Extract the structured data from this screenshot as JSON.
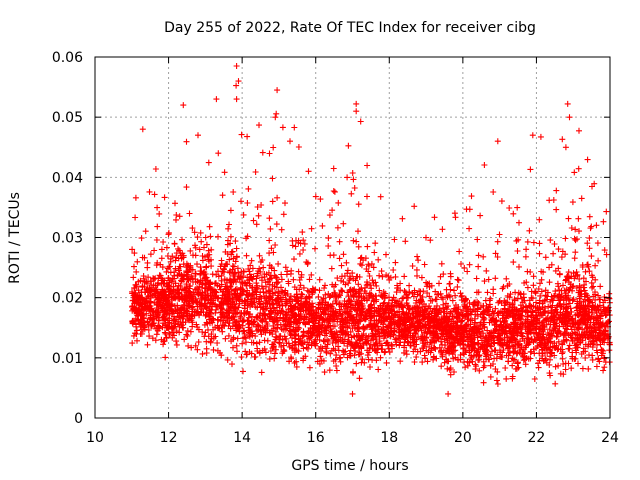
{
  "chart_data": {
    "type": "scatter",
    "title": "Day 255 of 2022, Rate Of TEC Index for receiver cibg",
    "xlabel": "GPS time / hours",
    "ylabel": "ROTI / TECUs",
    "xlim": [
      10,
      24
    ],
    "ylim": [
      0,
      0.06
    ],
    "x_ticks": [
      10,
      12,
      14,
      16,
      18,
      20,
      22,
      24
    ],
    "x_tick_labels": [
      "10",
      "12",
      "14",
      "16",
      "18",
      "20",
      "22",
      "24"
    ],
    "y_ticks": [
      0,
      0.01,
      0.02,
      0.03,
      0.04,
      0.05,
      0.06
    ],
    "y_tick_labels": [
      "0",
      "0.01",
      "0.02",
      "0.03",
      "0.04",
      "0.05",
      "0.06"
    ],
    "grid": true,
    "marker": "+",
    "color": "#ff0000",
    "series": [
      {
        "name": "ROTI",
        "x_range": [
          11.0,
          24.0
        ],
        "density_trend": [
          {
            "x": 11.0,
            "median": 0.018,
            "max": 0.036,
            "min": 0.007
          },
          {
            "x": 12.0,
            "median": 0.019,
            "max": 0.047,
            "min": 0.007
          },
          {
            "x": 13.0,
            "median": 0.02,
            "max": 0.05,
            "min": 0.006
          },
          {
            "x": 14.0,
            "median": 0.019,
            "max": 0.058,
            "min": 0.007
          },
          {
            "x": 15.0,
            "median": 0.017,
            "max": 0.054,
            "min": 0.007
          },
          {
            "x": 16.0,
            "median": 0.016,
            "max": 0.041,
            "min": 0.007
          },
          {
            "x": 17.0,
            "median": 0.016,
            "max": 0.052,
            "min": 0.004
          },
          {
            "x": 18.0,
            "median": 0.016,
            "max": 0.042,
            "min": 0.006
          },
          {
            "x": 19.0,
            "median": 0.015,
            "max": 0.035,
            "min": 0.005
          },
          {
            "x": 20.0,
            "median": 0.014,
            "max": 0.037,
            "min": 0.004
          },
          {
            "x": 21.0,
            "median": 0.014,
            "max": 0.046,
            "min": 0.005
          },
          {
            "x": 22.0,
            "median": 0.015,
            "max": 0.047,
            "min": 0.006
          },
          {
            "x": 23.0,
            "median": 0.016,
            "max": 0.052,
            "min": 0.005
          },
          {
            "x": 24.0,
            "median": 0.015,
            "max": 0.043,
            "min": 0.006
          }
        ],
        "notable_points": [
          [
            13.85,
            0.0585
          ],
          [
            13.9,
            0.056
          ],
          [
            13.85,
            0.053
          ],
          [
            14.95,
            0.0545
          ],
          [
            17.1,
            0.0522
          ],
          [
            17.1,
            0.051
          ],
          [
            22.85,
            0.0522
          ],
          [
            22.9,
            0.05
          ],
          [
            22.8,
            0.045
          ],
          [
            20.95,
            0.046
          ],
          [
            21.9,
            0.047
          ],
          [
            12.4,
            0.052
          ],
          [
            13.3,
            0.053
          ],
          [
            14.9,
            0.05
          ],
          [
            11.3,
            0.048
          ],
          [
            12.8,
            0.047
          ],
          [
            17.0,
            0.004
          ],
          [
            19.6,
            0.004
          ],
          [
            15.3,
            0.046
          ]
        ]
      }
    ]
  }
}
